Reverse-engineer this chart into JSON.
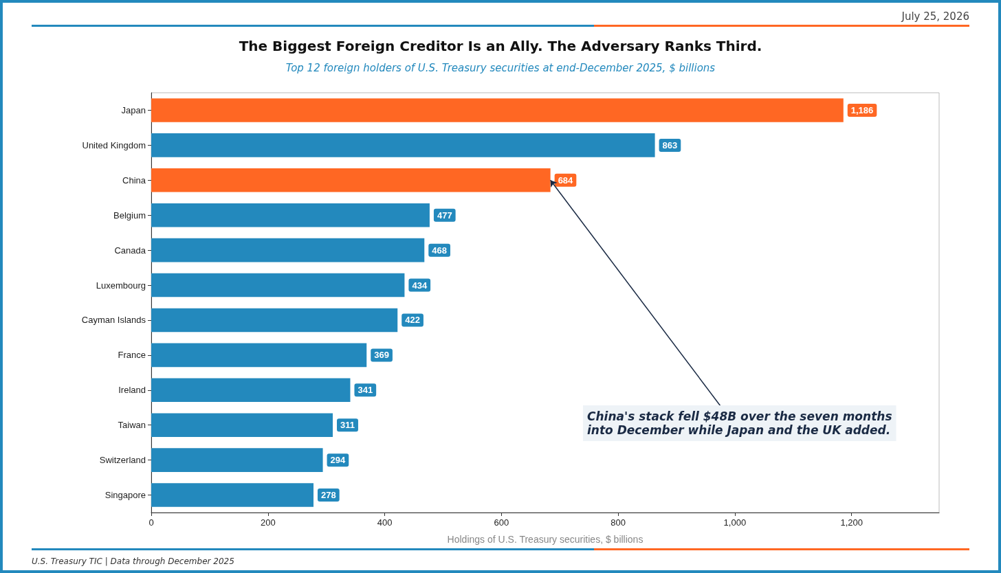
{
  "chart_data": {
    "type": "bar",
    "orientation": "horizontal",
    "title": "The Biggest Foreign Creditor Is an Ally. The Adversary Ranks Third.",
    "subtitle": "Top 12 foreign holders of U.S. Treasury securities at end-December 2025, $ billions",
    "xlabel": "Holdings of U.S. Treasury securities, $ billions",
    "categories": [
      "Japan",
      "United Kingdom",
      "China",
      "Belgium",
      "Canada",
      "Luxembourg",
      "Cayman Islands",
      "France",
      "Ireland",
      "Taiwan",
      "Switzerland",
      "Singapore"
    ],
    "values": [
      1186,
      863,
      684,
      477,
      468,
      434,
      422,
      369,
      341,
      311,
      294,
      278
    ],
    "colors": [
      "#ff6723",
      "#2389bd",
      "#ff6723",
      "#2389bd",
      "#2389bd",
      "#2389bd",
      "#2389bd",
      "#2389bd",
      "#2389bd",
      "#2389bd",
      "#2389bd",
      "#2389bd"
    ],
    "value_labels": [
      "1,186",
      "863",
      "684",
      "477",
      "468",
      "434",
      "422",
      "369",
      "341",
      "311",
      "294",
      "278"
    ],
    "xlim": [
      0,
      1350
    ],
    "xticks": [
      0,
      200,
      400,
      600,
      800,
      {
        "value": 1000,
        "label": "1,000"
      },
      {
        "value": 1200,
        "label": "1,200"
      }
    ],
    "grid": false,
    "annotations": [
      {
        "text": "China's stack fell $48B over the seven months\ninto December while Japan and the UK added.",
        "x": 684,
        "y": "China"
      },
      "July 25, 2026",
      "U.S. Treasury TIC | Data through December 2025"
    ]
  }
}
